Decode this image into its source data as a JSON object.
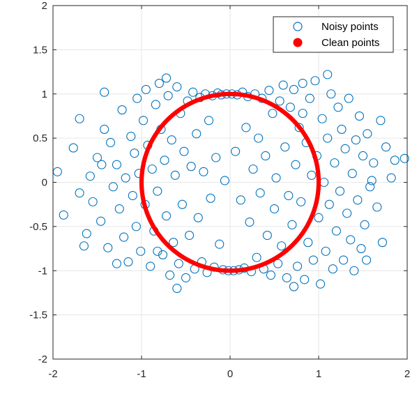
{
  "chart_data": {
    "type": "scatter",
    "title": "",
    "xlabel": "",
    "ylabel": "",
    "xlim": [
      -2,
      2
    ],
    "ylim": [
      -2,
      2
    ],
    "xticks": [
      -2,
      -1,
      0,
      1,
      2
    ],
    "yticks": [
      -2,
      -1.5,
      -1,
      -0.5,
      0,
      0.5,
      1,
      1.5,
      2
    ],
    "xtick_labels": [
      "-2",
      "-1",
      "0",
      "1",
      "2"
    ],
    "ytick_labels": [
      "-2",
      "-1.5",
      "-1",
      "-0.5",
      "0",
      "0.5",
      "1",
      "1.5",
      "2"
    ],
    "grid": true,
    "legend_position": "top-right",
    "series": [
      {
        "name": "Noisy points",
        "marker": "open-circle",
        "color": "#0072BD",
        "points": [
          [
            -1.95,
            0.12
          ],
          [
            -1.77,
            0.39
          ],
          [
            -1.88,
            -0.37
          ],
          [
            -1.7,
            -0.12
          ],
          [
            -1.62,
            -0.58
          ],
          [
            -1.58,
            0.07
          ],
          [
            -1.55,
            -0.22
          ],
          [
            -1.5,
            0.28
          ],
          [
            -1.46,
            -0.44
          ],
          [
            -1.42,
            0.6
          ],
          [
            -1.38,
            -0.74
          ],
          [
            -1.35,
            0.45
          ],
          [
            -1.32,
            -0.05
          ],
          [
            -1.28,
            0.2
          ],
          [
            -1.25,
            -0.3
          ],
          [
            -1.22,
            0.82
          ],
          [
            -1.2,
            -0.62
          ],
          [
            -1.18,
            0.05
          ],
          [
            -1.15,
            -0.9
          ],
          [
            -1.12,
            0.52
          ],
          [
            -1.1,
            -0.15
          ],
          [
            -1.08,
            0.33
          ],
          [
            -1.06,
            -0.5
          ],
          [
            -1.05,
            0.95
          ],
          [
            -1.03,
            0.1
          ],
          [
            -1.01,
            -0.78
          ],
          [
            -0.98,
            0.7
          ],
          [
            -0.96,
            -0.25
          ],
          [
            -0.95,
            1.05
          ],
          [
            -0.93,
            0.42
          ],
          [
            -0.9,
            -0.95
          ],
          [
            -0.88,
            0.15
          ],
          [
            -0.86,
            -0.55
          ],
          [
            -0.84,
            0.88
          ],
          [
            -0.82,
            -0.1
          ],
          [
            -0.8,
            1.12
          ],
          [
            -0.78,
            0.6
          ],
          [
            -0.76,
            -0.82
          ],
          [
            -0.74,
            0.25
          ],
          [
            -0.72,
            -0.38
          ],
          [
            -0.7,
            0.98
          ],
          [
            -0.68,
            -1.05
          ],
          [
            -0.66,
            0.48
          ],
          [
            -0.64,
            -0.68
          ],
          [
            -0.62,
            0.08
          ],
          [
            -0.6,
            1.08
          ],
          [
            -0.58,
            -0.92
          ],
          [
            -0.56,
            0.78
          ],
          [
            -0.54,
            -0.25
          ],
          [
            -0.52,
            0.35
          ],
          [
            -0.5,
            -1.08
          ],
          [
            -0.48,
            0.92
          ],
          [
            -0.46,
            -0.6
          ],
          [
            -0.44,
            0.18
          ],
          [
            -0.42,
            1.02
          ],
          [
            -0.4,
            -0.98
          ],
          [
            -0.38,
            0.55
          ],
          [
            -0.36,
            -0.4
          ],
          [
            -0.34,
            0.96
          ],
          [
            -0.32,
            -0.9
          ],
          [
            -0.3,
            0.12
          ],
          [
            -0.28,
            1.0
          ],
          [
            -0.26,
            -1.02
          ],
          [
            -0.24,
            0.7
          ],
          [
            -0.22,
            -0.18
          ],
          [
            -0.2,
            0.98
          ],
          [
            -0.18,
            -0.96
          ],
          [
            -0.16,
            0.28
          ],
          [
            -0.14,
            1.01
          ],
          [
            -0.12,
            -0.7
          ],
          [
            -0.1,
            0.99
          ],
          [
            -0.08,
            -0.99
          ],
          [
            -0.06,
            0.02
          ],
          [
            -0.04,
            1.0
          ],
          [
            -0.02,
            -1.0
          ],
          [
            0.02,
            1.0
          ],
          [
            0.04,
            -1.0
          ],
          [
            0.06,
            0.35
          ],
          [
            0.08,
            0.99
          ],
          [
            0.1,
            -0.99
          ],
          [
            0.12,
            -0.2
          ],
          [
            0.14,
            1.02
          ],
          [
            0.16,
            -0.97
          ],
          [
            0.18,
            0.62
          ],
          [
            0.2,
            0.97
          ],
          [
            0.22,
            -0.45
          ],
          [
            0.24,
            -1.01
          ],
          [
            0.26,
            0.15
          ],
          [
            0.28,
            1.0
          ],
          [
            0.3,
            -0.85
          ],
          [
            0.32,
            0.5
          ],
          [
            0.34,
            -0.12
          ],
          [
            0.36,
            0.95
          ],
          [
            0.38,
            -0.98
          ],
          [
            0.4,
            0.3
          ],
          [
            0.42,
            -0.6
          ],
          [
            0.44,
            1.04
          ],
          [
            0.46,
            -1.05
          ],
          [
            0.48,
            0.78
          ],
          [
            0.5,
            -0.3
          ],
          [
            0.52,
            0.05
          ],
          [
            0.54,
            -0.92
          ],
          [
            0.56,
            0.92
          ],
          [
            0.58,
            -0.72
          ],
          [
            0.6,
            1.1
          ],
          [
            0.62,
            0.4
          ],
          [
            0.64,
            -1.08
          ],
          [
            0.66,
            -0.15
          ],
          [
            0.68,
            0.85
          ],
          [
            0.7,
            -0.48
          ],
          [
            0.72,
            1.05
          ],
          [
            0.74,
            0.2
          ],
          [
            0.76,
            -0.95
          ],
          [
            0.78,
            0.62
          ],
          [
            0.8,
            -0.22
          ],
          [
            0.82,
            1.12
          ],
          [
            0.84,
            -1.1
          ],
          [
            0.86,
            0.45
          ],
          [
            0.88,
            -0.68
          ],
          [
            0.9,
            0.95
          ],
          [
            0.92,
            0.08
          ],
          [
            0.94,
            -0.88
          ],
          [
            0.96,
            1.15
          ],
          [
            0.98,
            0.3
          ],
          [
            1.0,
            -0.4
          ],
          [
            1.02,
            -1.15
          ],
          [
            1.04,
            0.72
          ],
          [
            1.06,
            0.0
          ],
          [
            1.08,
            -0.78
          ],
          [
            1.1,
            0.5
          ],
          [
            1.12,
            -0.25
          ],
          [
            1.14,
            1.0
          ],
          [
            1.16,
            -0.98
          ],
          [
            1.18,
            0.22
          ],
          [
            1.2,
            -0.55
          ],
          [
            1.22,
            0.85
          ],
          [
            1.24,
            -0.1
          ],
          [
            1.26,
            0.6
          ],
          [
            1.28,
            -0.88
          ],
          [
            1.3,
            0.38
          ],
          [
            1.32,
            -0.35
          ],
          [
            1.34,
            0.95
          ],
          [
            1.36,
            -0.65
          ],
          [
            1.38,
            0.1
          ],
          [
            1.4,
            -1.0
          ],
          [
            1.42,
            0.48
          ],
          [
            1.44,
            -0.2
          ],
          [
            1.46,
            0.75
          ],
          [
            1.48,
            -0.75
          ],
          [
            1.5,
            0.3
          ],
          [
            1.52,
            -0.48
          ],
          [
            1.55,
            0.55
          ],
          [
            1.58,
            -0.05
          ],
          [
            1.62,
            0.22
          ],
          [
            1.66,
            -0.28
          ],
          [
            1.7,
            0.7
          ],
          [
            1.72,
            -0.68
          ],
          [
            1.76,
            0.4
          ],
          [
            1.82,
            0.05
          ],
          [
            1.86,
            0.25
          ],
          [
            1.97,
            0.27
          ],
          [
            1.54,
            -0.88
          ],
          [
            -1.42,
            1.02
          ],
          [
            -1.7,
            0.72
          ],
          [
            -1.65,
            -0.72
          ],
          [
            -1.28,
            -0.92
          ],
          [
            -0.72,
            1.18
          ],
          [
            0.72,
            -1.18
          ],
          [
            1.1,
            1.22
          ],
          [
            -0.6,
            -1.2
          ],
          [
            -1.45,
            0.2
          ],
          [
            1.6,
            0.02
          ],
          [
            -0.82,
            -0.78
          ],
          [
            0.82,
            0.78
          ]
        ]
      },
      {
        "name": "Clean points",
        "marker": "filled-circle",
        "color": "#FF0000",
        "shape": "unit circle",
        "center": [
          0,
          0
        ],
        "radius": 1
      }
    ]
  }
}
